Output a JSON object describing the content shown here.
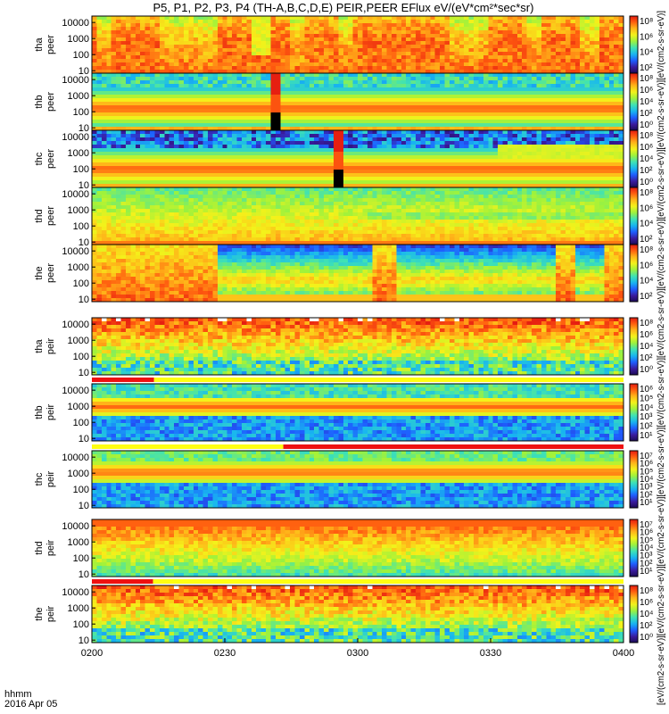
{
  "chart_data": {
    "type": "heatmap",
    "title": "P5, P1, P2, P3, P4 (TH-A,B,C,D,E) PEIR,PEER EFlux eV/(eV*cm²*sec*sr)",
    "x_ticks": [
      "0200",
      "0230",
      "0300",
      "0330",
      "0400"
    ],
    "x_corner_label": [
      "hhmm",
      "2016 Apr 05"
    ],
    "x_range": [
      "02:00",
      "04:00"
    ],
    "y_scale": "log",
    "y_ticks": [
      "10000",
      "1000",
      "100",
      "10"
    ],
    "y_range_eV": [
      7,
      25000
    ],
    "colorbar_scale": "log",
    "colorbar_colors": [
      "#1a0a50",
      "#3a1b9e",
      "#1e5cff",
      "#18b6f0",
      "#3fe2b4",
      "#9ef23c",
      "#f4f21a",
      "#ffb419",
      "#ff5a0f",
      "#e01212",
      "#ffffff"
    ],
    "colorbar_long_label": "[eV/(cm2-s-sr-eV)][eV/(cm2-s-sr-eV)][eV/(cm2-s-sr-eV)][eV/(cm2-s-sr-eV)][eV/(cm2-s-sr-eV)][eV/(cm2-s-sr-eV)][eV/(cm2-s-sr-eV)][eV/(cm2-s-sr-eV)][eV/(cm2-s-sr-eV)][eV/(cm2-s-sr-eV)]",
    "status_bar_colors": {
      "red": "#ee1111",
      "yellow": "#ffff11",
      "black": "#000000"
    },
    "panels": [
      {
        "probe": "tha",
        "species": "peer",
        "ylabel": [
          "tha",
          "peer"
        ],
        "cbar_ticks": [
          "10⁸",
          "10⁶",
          "10⁴",
          "10²"
        ],
        "mode": "electron-red",
        "max_level": 9,
        "contrast": 0.55
      },
      {
        "probe": "thb",
        "species": "peer",
        "ylabel": [
          "thb",
          "peer"
        ],
        "cbar_ticks": [
          "10⁸",
          "10⁶",
          "10⁴",
          "10²",
          "10⁰"
        ],
        "mode": "band-cyan-top",
        "max_level": 9,
        "contrast": 0.3,
        "gap": [
          0.335,
          0.355
        ]
      },
      {
        "probe": "thc",
        "species": "peer",
        "ylabel": [
          "thc",
          "peer"
        ],
        "cbar_ticks": [
          "10⁸",
          "10⁶",
          "10⁴",
          "10²",
          "10⁰"
        ],
        "mode": "band-blue-top",
        "max_level": 9,
        "contrast": 0.35,
        "gap": [
          0.455,
          0.475
        ]
      },
      {
        "probe": "thd",
        "species": "peer",
        "ylabel": [
          "thd",
          "peer"
        ],
        "cbar_ticks": [
          "10⁸",
          "10⁶",
          "10⁴",
          "10²"
        ],
        "mode": "electron-orange",
        "max_level": 9,
        "contrast": 0.4
      },
      {
        "probe": "the",
        "species": "peer",
        "ylabel": [
          "the",
          "peer"
        ],
        "cbar_ticks": [
          "10⁸",
          "10⁶",
          "10⁴",
          "10²"
        ],
        "mode": "the-peer",
        "max_level": 9,
        "contrast": 0.6
      },
      {
        "probe": "tha",
        "species": "peir",
        "ylabel": [
          "tha",
          "peir"
        ],
        "cbar_ticks": [
          "10⁸",
          "10⁶",
          "10⁴",
          "10²",
          "10⁰"
        ],
        "mode": "ion-hot",
        "max_level": 9,
        "contrast": 0.4
      },
      {
        "probe": "thb",
        "species": "peir",
        "ylabel": [
          "thb",
          "peir"
        ],
        "cbar_ticks": [
          "10⁶",
          "10⁵",
          "10⁴",
          "10³",
          "10²",
          "10¹"
        ],
        "mode": "ion-band",
        "max_level": 8,
        "contrast": 0.3
      },
      {
        "probe": "thc",
        "species": "peir",
        "ylabel": [
          "thc",
          "peir"
        ],
        "cbar_ticks": [
          "10⁷",
          "10⁶",
          "10⁵",
          "10⁴",
          "10³",
          "10²",
          "10¹"
        ],
        "mode": "ion-band-green",
        "max_level": 8,
        "contrast": 0.3
      },
      {
        "probe": "thd",
        "species": "peir",
        "ylabel": [
          "thd",
          "peir"
        ],
        "cbar_ticks": [
          "10⁷",
          "10⁶",
          "10⁵",
          "10⁴",
          "10³",
          "10²",
          "10¹"
        ],
        "mode": "ion-warm",
        "max_level": 8,
        "contrast": 0.35
      },
      {
        "probe": "the",
        "species": "peir",
        "ylabel": [
          "the",
          "peir"
        ],
        "cbar_ticks": [
          "10⁸",
          "10⁶",
          "10⁴",
          "10²",
          "10⁰"
        ],
        "mode": "ion-hot",
        "max_level": 9,
        "contrast": 0.45
      }
    ],
    "status_bars": [
      {
        "above_panel": 6,
        "segments": [
          {
            "from": 0,
            "to": 0.117,
            "color": "red"
          },
          {
            "from": 0.117,
            "to": 1,
            "color": "yellow"
          }
        ]
      },
      {
        "above_panel": 7,
        "segments": [
          {
            "from": 0,
            "to": 0.36,
            "color": "yellow"
          },
          {
            "from": 0.36,
            "to": 1,
            "color": "red"
          }
        ]
      },
      {
        "above_panel": 9,
        "segments": [
          {
            "from": 0,
            "to": 0.115,
            "color": "red"
          },
          {
            "from": 0.115,
            "to": 1,
            "color": "yellow"
          }
        ]
      }
    ]
  }
}
